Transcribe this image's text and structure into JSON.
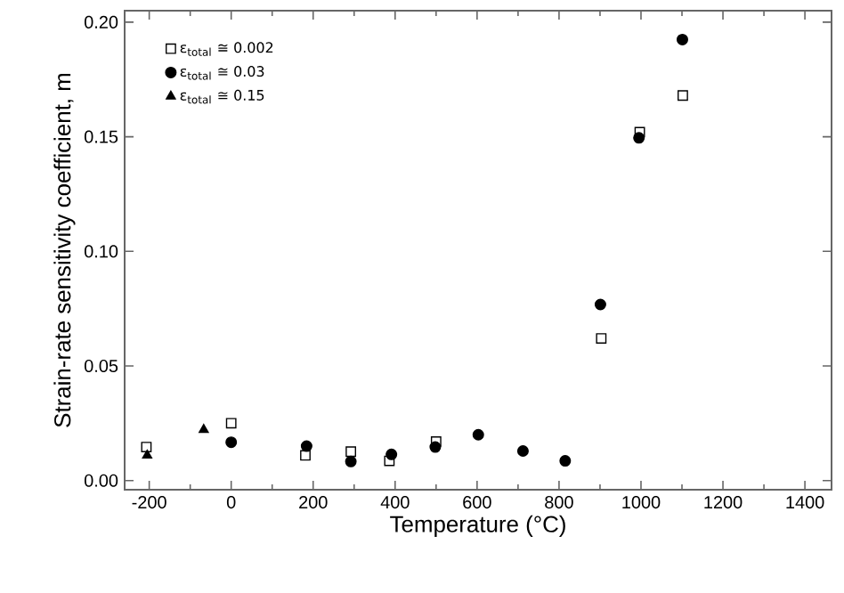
{
  "chart_data": {
    "type": "scatter",
    "xlabel": "Temperature (°C)",
    "ylabel": "Strain-rate sensitivity coefficient, m",
    "xlim": [
      -260,
      1465
    ],
    "ylim": [
      -0.004,
      0.205
    ],
    "xticks": [
      -200,
      0,
      200,
      400,
      600,
      800,
      1000,
      1200,
      1400
    ],
    "yticks": [
      {
        "value": 0,
        "label": "0.00"
      },
      {
        "value": 0.05,
        "label": "0.05"
      },
      {
        "value": 0.1,
        "label": "0.10"
      },
      {
        "value": 0.15,
        "label": "0.15"
      },
      {
        "value": 0.2,
        "label": "0.20"
      }
    ],
    "legend": "top left",
    "grid": false,
    "series": [
      {
        "name": "ε$_{total}$ ≅ 0.002",
        "color": "#000000",
        "marker": "square",
        "x": [
          -207,
          0,
          181,
          292,
          386,
          500,
          903,
          997,
          1102
        ],
        "values": [
          0.0146,
          0.025,
          0.011,
          0.0126,
          0.0086,
          0.017,
          0.062,
          0.152,
          0.168
        ]
      },
      {
        "name": "ε$_{total}$ ≅ 0.03",
        "color": "#000000",
        "marker": "circle",
        "x": [
          0,
          184,
          292,
          391,
          498,
          603,
          712,
          815,
          901,
          995,
          1101
        ],
        "values": [
          0.0167,
          0.015,
          0.0083,
          0.0114,
          0.0146,
          0.02,
          0.0129,
          0.0086,
          0.0768,
          0.1495,
          0.1924
        ]
      },
      {
        "name": "ε$_{total}$ ≅ 0.15",
        "color": "#000000",
        "marker": "triangle",
        "x": [
          -205,
          -67
        ],
        "values": [
          0.011,
          0.0222
        ]
      }
    ]
  }
}
